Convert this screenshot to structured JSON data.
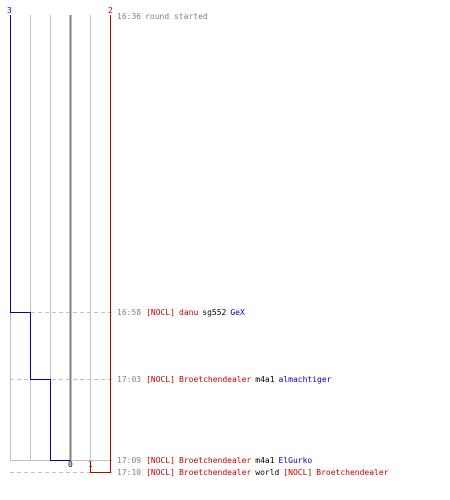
{
  "colors": {
    "team_blue": "#0000c0",
    "team_red": "#c00000",
    "time": "#808080",
    "neutral_text": "#000000",
    "grid": "#c0c0c0",
    "center_line": "#808080",
    "dash": "#c0c0c0"
  },
  "header": {
    "blue_count": "3",
    "red_count": "2",
    "start_time": "16:36",
    "start_text": "round started"
  },
  "scale": {
    "center_label": "0",
    "red_marker_label": "1"
  },
  "score_steps": [
    {
      "time": "16:36",
      "blue": 3,
      "red": 2
    },
    {
      "time": "16:58",
      "blue": 2,
      "red": 2
    },
    {
      "time": "17:03",
      "blue": 1,
      "red": 2
    },
    {
      "time": "17:09",
      "blue": 0,
      "red": 2
    },
    {
      "time": "17:10",
      "blue": 0,
      "red": 1
    }
  ],
  "events": [
    {
      "time": "16:58",
      "killer_tag": "[NOCL]",
      "killer": "danu",
      "killer_team": "red",
      "weapon": "sg552",
      "victim_tag": "",
      "victim": "GeX",
      "victim_team": "blue"
    },
    {
      "time": "17:03",
      "killer_tag": "[NOCL]",
      "killer": "Broetchendealer",
      "killer_team": "red",
      "weapon": "m4a1",
      "victim_tag": "",
      "victim": "almachtiger",
      "victim_team": "blue"
    },
    {
      "time": "17:09",
      "killer_tag": "[NOCL]",
      "killer": "Broetchendealer",
      "killer_team": "red",
      "weapon": "m4a1",
      "victim_tag": "",
      "victim": "ElGurko",
      "victim_team": "blue"
    },
    {
      "time": "17:10",
      "killer_tag": "[NOCL]",
      "killer": "Broetchendealer",
      "killer_team": "red",
      "weapon": "world",
      "victim_tag": "[NOCL]",
      "victim": "Broetchendealer",
      "victim_team": "red"
    }
  ]
}
